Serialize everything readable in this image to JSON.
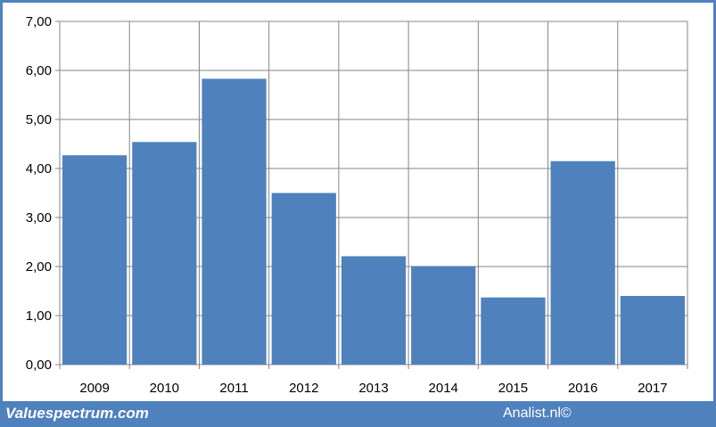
{
  "chart_data": {
    "type": "bar",
    "categories": [
      "2009",
      "2010",
      "2011",
      "2012",
      "2013",
      "2014",
      "2015",
      "2016",
      "2017"
    ],
    "values": [
      4.27,
      4.54,
      5.83,
      3.5,
      2.21,
      2.01,
      1.37,
      4.15,
      1.4
    ],
    "ylim": [
      0,
      7
    ],
    "yticks": [
      "0,00",
      "1,00",
      "2,00",
      "3,00",
      "4,00",
      "5,00",
      "6,00",
      "7,00"
    ],
    "grid": true,
    "bar_color": "#4f81bd",
    "grid_color": "#868686"
  },
  "footer": {
    "left_text": "Valuespectrum.com",
    "right_text": "Analist.nl©"
  }
}
